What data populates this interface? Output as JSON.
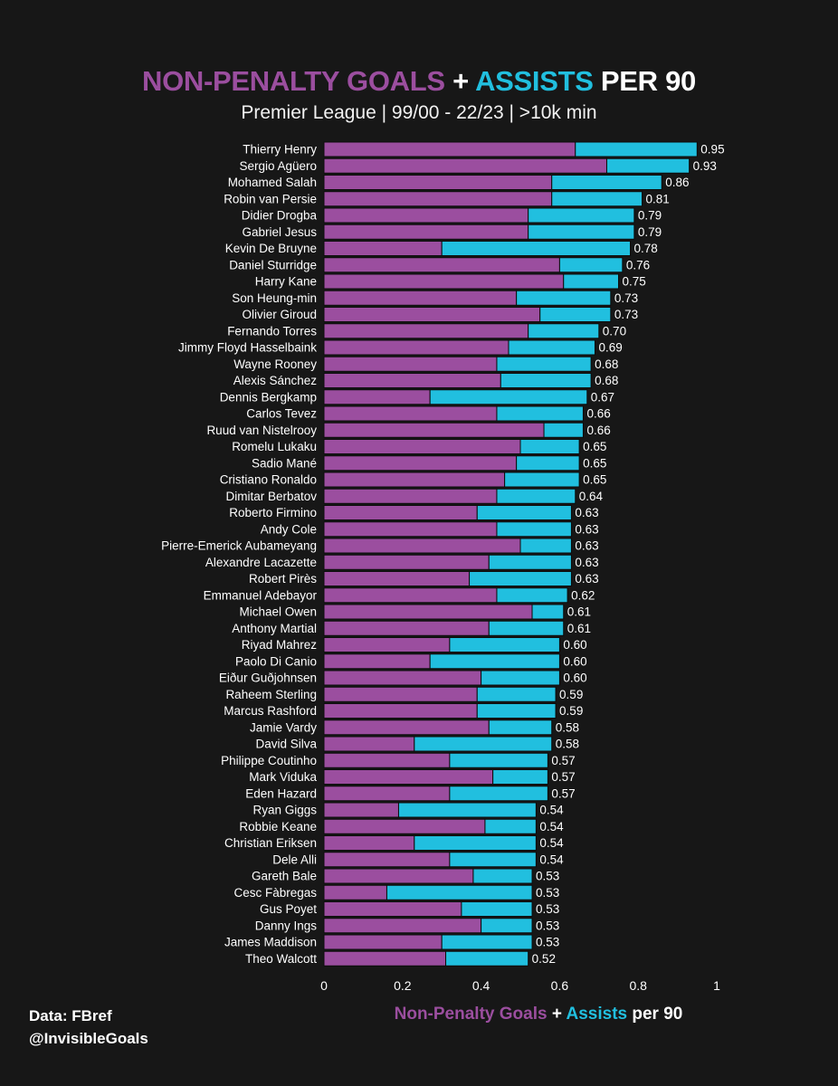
{
  "colors": {
    "background": "#171717",
    "goals": "#9b4e9f",
    "assists": "#21bfdf",
    "text": "#ffffff"
  },
  "header": {
    "title_goals": "NON-PENALTY GOALS",
    "title_plus": " + ",
    "title_assists": "ASSISTS",
    "title_rest": " PER 90",
    "subtitle": "Premier League | 99/00 - 22/23 | >10k min"
  },
  "footer": {
    "source": "Data: FBref",
    "handle": "@InvisibleGoals",
    "xlabel_goals": "Non-Penalty Goals",
    "xlabel_plus": " + ",
    "xlabel_assists": "Assists",
    "xlabel_rest": " per 90"
  },
  "chart_data": {
    "type": "bar",
    "orientation": "horizontal",
    "stacked": true,
    "title": "NON-PENALTY GOALS + ASSISTS PER 90",
    "subtitle": "Premier League | 99/00 - 22/23 | >10k min",
    "xlabel": "Non-Penalty Goals + Assists per 90",
    "xlim": [
      0,
      1
    ],
    "xticks": [
      "0",
      "0.2",
      "0.4",
      "0.6",
      "0.8",
      "1"
    ],
    "categories": [
      "Thierry Henry",
      "Sergio Agüero",
      "Mohamed Salah",
      "Robin van Persie",
      "Didier Drogba",
      "Gabriel Jesus",
      "Kevin De Bruyne",
      "Daniel Sturridge",
      "Harry Kane",
      "Son Heung-min",
      "Olivier Giroud",
      "Fernando Torres",
      "Jimmy Floyd Hasselbaink",
      "Wayne Rooney",
      "Alexis Sánchez",
      "Dennis Bergkamp",
      "Carlos Tevez",
      "Ruud van Nistelrooy",
      "Romelu Lukaku",
      "Sadio Mané",
      "Cristiano Ronaldo",
      "Dimitar Berbatov",
      "Roberto Firmino",
      "Andy Cole",
      "Pierre-Emerick Aubameyang",
      "Alexandre Lacazette",
      "Robert Pirès",
      "Emmanuel Adebayor",
      "Michael Owen",
      "Anthony Martial",
      "Riyad Mahrez",
      "Paolo Di Canio",
      "Eiður Guðjohnsen",
      "Raheem Sterling",
      "Marcus Rashford",
      "Jamie Vardy",
      "David Silva",
      "Philippe Coutinho",
      "Mark Viduka",
      "Eden Hazard",
      "Ryan Giggs",
      "Robbie Keane",
      "Christian Eriksen",
      "Dele Alli",
      "Gareth Bale",
      "Cesc Fàbregas",
      "Gus Poyet",
      "Danny Ings",
      "James Maddison",
      "Theo Walcott"
    ],
    "series": [
      {
        "name": "Non-Penalty Goals",
        "values": [
          0.64,
          0.72,
          0.58,
          0.58,
          0.52,
          0.52,
          0.3,
          0.6,
          0.61,
          0.49,
          0.55,
          0.52,
          0.47,
          0.44,
          0.45,
          0.27,
          0.44,
          0.56,
          0.5,
          0.49,
          0.46,
          0.44,
          0.39,
          0.44,
          0.5,
          0.42,
          0.37,
          0.44,
          0.53,
          0.42,
          0.32,
          0.27,
          0.4,
          0.39,
          0.39,
          0.42,
          0.23,
          0.32,
          0.43,
          0.32,
          0.19,
          0.41,
          0.23,
          0.32,
          0.38,
          0.16,
          0.35,
          0.4,
          0.3,
          0.31
        ]
      },
      {
        "name": "Assists",
        "values": [
          0.31,
          0.21,
          0.28,
          0.23,
          0.27,
          0.27,
          0.48,
          0.16,
          0.14,
          0.24,
          0.18,
          0.18,
          0.22,
          0.24,
          0.23,
          0.4,
          0.22,
          0.1,
          0.15,
          0.16,
          0.19,
          0.2,
          0.24,
          0.19,
          0.13,
          0.21,
          0.26,
          0.18,
          0.08,
          0.19,
          0.28,
          0.33,
          0.2,
          0.2,
          0.2,
          0.16,
          0.35,
          0.25,
          0.14,
          0.25,
          0.35,
          0.13,
          0.31,
          0.22,
          0.15,
          0.37,
          0.18,
          0.13,
          0.23,
          0.21
        ]
      }
    ],
    "totals": [
      "0.95",
      "0.93",
      "0.86",
      "0.81",
      "0.79",
      "0.79",
      "0.78",
      "0.76",
      "0.75",
      "0.73",
      "0.73",
      "0.70",
      "0.69",
      "0.68",
      "0.68",
      "0.67",
      "0.66",
      "0.66",
      "0.65",
      "0.65",
      "0.65",
      "0.64",
      "0.63",
      "0.63",
      "0.63",
      "0.63",
      "0.63",
      "0.62",
      "0.61",
      "0.61",
      "0.60",
      "0.60",
      "0.60",
      "0.59",
      "0.59",
      "0.58",
      "0.58",
      "0.57",
      "0.57",
      "0.57",
      "0.54",
      "0.54",
      "0.54",
      "0.54",
      "0.53",
      "0.53",
      "0.53",
      "0.53",
      "0.53",
      "0.52"
    ]
  }
}
